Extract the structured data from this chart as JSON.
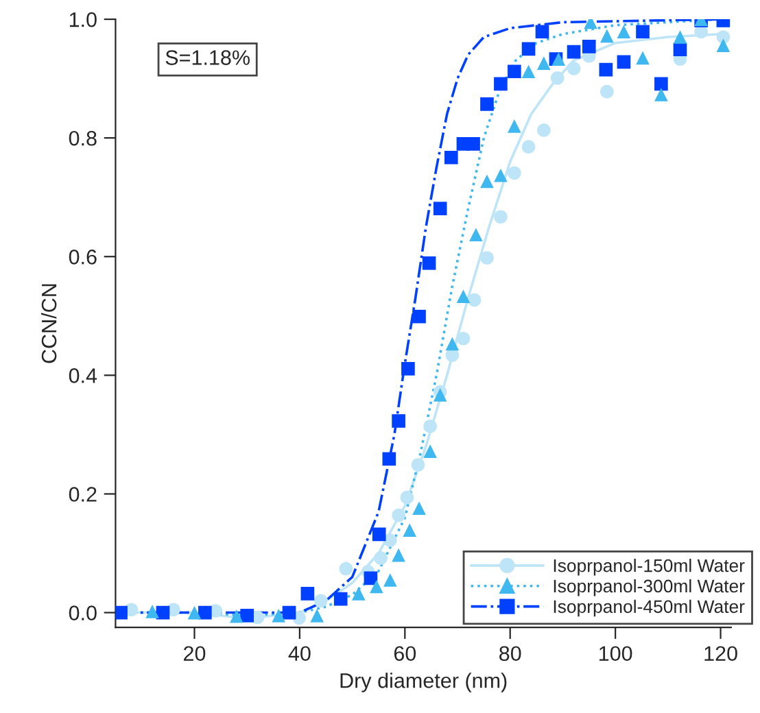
{
  "chart_data": {
    "type": "scatter",
    "xlabel": "Dry diameter (nm)",
    "ylabel": "CCN/CN",
    "annotations": [
      "S=1.18%"
    ],
    "xlim": [
      5,
      122
    ],
    "ylim": [
      -0.025,
      1.0
    ],
    "xticks": [
      20,
      40,
      60,
      80,
      100,
      120
    ],
    "yticks": [
      {
        "value": 0,
        "label": "0.0"
      },
      0.2,
      0.4,
      0.6,
      0.8,
      {
        "value": 1,
        "label": "1.0"
      }
    ],
    "grid": false,
    "legend": "bottom right",
    "series": [
      {
        "name": "Isoprpanol-150ml Water",
        "color": "#bde4f7",
        "marker": "circle",
        "x": [
          8,
          16,
          24,
          32,
          39.9,
          44,
          48.8,
          53,
          55.4,
          57.2,
          58.8,
          60.4,
          62.5,
          64.8,
          66.7,
          69,
          71.1,
          73.2,
          75.6,
          78.2,
          80.8,
          83.5,
          86.4,
          89,
          92.1,
          95,
          98.4,
          112.3,
          116.3,
          120.5
        ],
        "values": [
          0.005,
          0.005,
          0.003,
          -0.008,
          -0.009,
          0.02,
          0.074,
          0.069,
          0.092,
          0.122,
          0.164,
          0.194,
          0.249,
          0.314,
          0.372,
          0.434,
          0.462,
          0.527,
          0.598,
          0.667,
          0.741,
          0.785,
          0.813,
          0.901,
          0.917,
          0.938,
          0.878,
          0.933,
          0.979,
          0.97
        ]
      },
      {
        "name": "Isoprpanol-300ml Water",
        "color": "#3fb8f0",
        "marker": "triangle",
        "x": [
          12,
          20,
          28,
          36,
          43.3,
          51.2,
          54.6,
          57.2,
          58.8,
          60.9,
          62.7,
          64.8,
          66.7,
          69,
          71.1,
          73.5,
          75.6,
          78.2,
          80.8,
          83.5,
          86.4,
          89.2,
          95.3,
          98.4,
          101.6,
          105.2,
          108.7,
          112.3,
          116.3,
          120.5
        ],
        "values": [
          0.002,
          0.0,
          -0.006,
          -0.005,
          -0.005,
          0.032,
          0.044,
          0.055,
          0.097,
          0.139,
          0.176,
          0.272,
          0.367,
          0.453,
          0.533,
          0.637,
          0.727,
          0.737,
          0.82,
          0.912,
          0.926,
          0.933,
          0.995,
          0.972,
          0.979,
          0.935,
          0.873,
          0.97,
          1.0,
          0.956
        ]
      },
      {
        "name": "Isoprpanol-450ml Water",
        "color": "#0040ff",
        "marker": "square",
        "x": [
          6,
          14,
          22,
          30,
          38,
          41.5,
          47.8,
          53.5,
          55.1,
          57,
          58.8,
          60.6,
          62.7,
          64.6,
          66.7,
          68.8,
          71.1,
          73,
          75.6,
          78.2,
          80.8,
          83.5,
          86.1,
          88.7,
          92.1,
          95,
          98.2,
          101.6,
          105.2,
          108.7,
          112.3,
          116.3,
          120.5
        ],
        "values": [
          0.0,
          0.0,
          0.0,
          -0.005,
          0.0,
          0.032,
          0.023,
          0.058,
          0.132,
          0.259,
          0.323,
          0.411,
          0.499,
          0.589,
          0.681,
          0.767,
          0.79,
          0.79,
          0.857,
          0.891,
          0.912,
          0.95,
          0.979,
          0.933,
          0.945,
          0.954,
          0.915,
          0.928,
          0.979,
          0.891,
          0.949,
          0.998,
          0.998
        ]
      },
      {
        "type": "line",
        "color": "#bde4f7",
        "line_style": "solid",
        "x": [
          6,
          20,
          30,
          40,
          45,
          50,
          55,
          60,
          64,
          68,
          72,
          76,
          80,
          84,
          88,
          92,
          100,
          110,
          120
        ],
        "values": [
          0.0,
          0.0,
          -0.01,
          0.0,
          0.02,
          0.05,
          0.1,
          0.18,
          0.28,
          0.4,
          0.53,
          0.65,
          0.76,
          0.84,
          0.89,
          0.93,
          0.96,
          0.97,
          0.975
        ]
      },
      {
        "type": "line",
        "color": "#3fb8f0",
        "line_style": "dotted",
        "x": [
          6,
          20,
          30,
          40,
          45,
          50,
          55,
          60,
          63,
          66,
          69,
          72,
          75,
          78,
          81,
          85,
          90,
          100,
          120
        ],
        "values": [
          0.0,
          0.0,
          -0.005,
          0.0,
          0.01,
          0.03,
          0.07,
          0.16,
          0.27,
          0.4,
          0.55,
          0.68,
          0.8,
          0.88,
          0.93,
          0.96,
          0.975,
          0.99,
          1.0
        ]
      },
      {
        "type": "line",
        "color": "#0040ff",
        "line_style": "dashdot",
        "x": [
          6,
          20,
          30,
          40,
          45,
          50,
          55,
          58,
          60,
          62,
          64,
          66,
          68,
          70,
          72,
          75,
          80,
          90,
          120
        ],
        "values": [
          0.0,
          0.0,
          0.0,
          0.0,
          0.02,
          0.06,
          0.17,
          0.3,
          0.42,
          0.53,
          0.65,
          0.75,
          0.84,
          0.9,
          0.94,
          0.97,
          0.985,
          0.995,
          1.0
        ]
      }
    ]
  }
}
